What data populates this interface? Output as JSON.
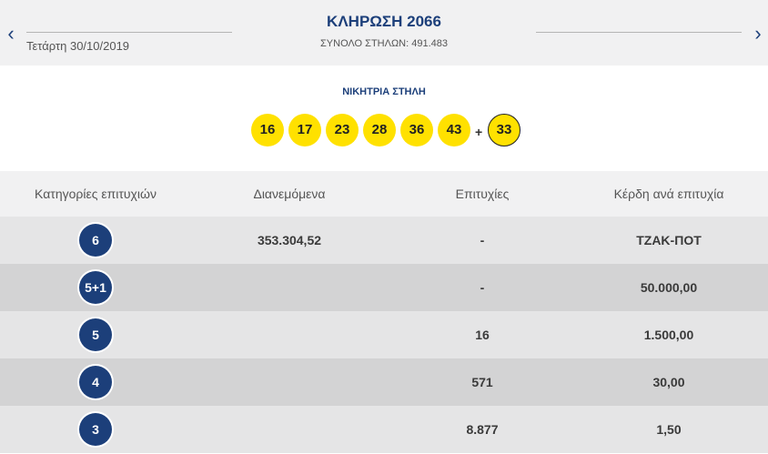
{
  "header": {
    "date": "Τετάρτη 30/10/2019",
    "draw_title": "ΚΛΗΡΩΣΗ 2066",
    "columns_total": "ΣΥΝΟΛΟ ΣΤΗΛΩΝ: 491.483",
    "prev_icon": "chevron-left-icon",
    "next_icon": "chevron-right-icon"
  },
  "winning": {
    "label": "ΝΙΚΗΤΡΙΑ ΣΤΗΛΗ",
    "numbers": [
      "16",
      "17",
      "23",
      "28",
      "36",
      "43"
    ],
    "plus": "+",
    "bonus": "33"
  },
  "table": {
    "headers": [
      "Κατηγορίες επιτυχιών",
      "Διανεμόμενα",
      "Επιτυχίες",
      "Κέρδη ανά επιτυχία"
    ],
    "rows": [
      {
        "category": "6",
        "distributed": "353.304,52",
        "winners": "-",
        "prize": "ΤΖΑΚ-ΠΟΤ"
      },
      {
        "category": "5+1",
        "distributed": "",
        "winners": "-",
        "prize": "50.000,00"
      },
      {
        "category": "5",
        "distributed": "",
        "winners": "16",
        "prize": "1.500,00"
      },
      {
        "category": "4",
        "distributed": "",
        "winners": "571",
        "prize": "30,00"
      },
      {
        "category": "3",
        "distributed": "",
        "winners": "8.877",
        "prize": "1,50"
      }
    ]
  },
  "colors": {
    "brand_blue": "#1c3f7a",
    "ball_yellow": "#ffe100",
    "header_bg": "#f1f1f2",
    "row_light": "#e5e5e6",
    "row_dark": "#d3d3d4"
  }
}
